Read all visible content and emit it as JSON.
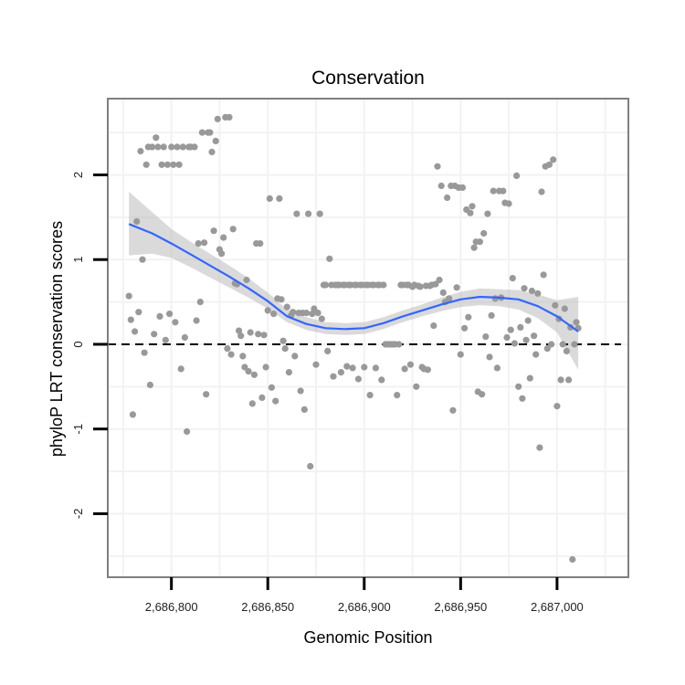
{
  "chart_data": {
    "type": "scatter",
    "title": "Conservation",
    "xlabel": "Genomic Position",
    "ylabel": "phyloP LRT conservation scores",
    "xlim": [
      2686767,
      2687037
    ],
    "ylim": [
      -2.75,
      2.9
    ],
    "x_ticks": [
      2686800,
      2686850,
      2686900,
      2686950,
      2687000
    ],
    "x_tick_labels": [
      "2,686,800",
      "2,686,850",
      "2,686,900",
      "2,686,950",
      "2,687,000"
    ],
    "y_ticks": [
      -2,
      -1,
      0,
      1,
      2
    ],
    "y_tick_labels": [
      "-2",
      "-1",
      "0",
      "1",
      "2"
    ],
    "reference_line": {
      "y": 0,
      "style": "dashed"
    },
    "points": [
      [
        2686778,
        0.57
      ],
      [
        2686779,
        0.29
      ],
      [
        2686780,
        -0.83
      ],
      [
        2686781,
        0.15
      ],
      [
        2686782,
        1.45
      ],
      [
        2686783,
        0.38
      ],
      [
        2686784,
        2.28
      ],
      [
        2686785,
        1.0
      ],
      [
        2686786,
        -0.1
      ],
      [
        2686787,
        2.12
      ],
      [
        2686788,
        2.33
      ],
      [
        2686789,
        -0.48
      ],
      [
        2686790,
        2.33
      ],
      [
        2686791,
        0.12
      ],
      [
        2686792,
        2.44
      ],
      [
        2686793,
        2.33
      ],
      [
        2686794,
        0.33
      ],
      [
        2686795,
        2.12
      ],
      [
        2686796,
        2.33
      ],
      [
        2686797,
        0.05
      ],
      [
        2686798,
        2.12
      ],
      [
        2686799,
        0.36
      ],
      [
        2686800,
        2.33
      ],
      [
        2686801,
        2.12
      ],
      [
        2686802,
        0.26
      ],
      [
        2686803,
        2.33
      ],
      [
        2686804,
        2.12
      ],
      [
        2686805,
        -0.29
      ],
      [
        2686806,
        2.33
      ],
      [
        2686807,
        0.08
      ],
      [
        2686808,
        -1.03
      ],
      [
        2686809,
        2.33
      ],
      [
        2686810,
        2.33
      ],
      [
        2686812,
        2.33
      ],
      [
        2686813,
        0.28
      ],
      [
        2686814,
        1.19
      ],
      [
        2686815,
        0.5
      ],
      [
        2686816,
        2.5
      ],
      [
        2686817,
        1.2
      ],
      [
        2686818,
        -0.59
      ],
      [
        2686819,
        2.5
      ],
      [
        2686820,
        2.5
      ],
      [
        2686821,
        2.27
      ],
      [
        2686822,
        1.34
      ],
      [
        2686823,
        2.4
      ],
      [
        2686824,
        2.66
      ],
      [
        2686825,
        1.12
      ],
      [
        2686826,
        1.07
      ],
      [
        2686827,
        1.26
      ],
      [
        2686828,
        2.68
      ],
      [
        2686829,
        -0.05
      ],
      [
        2686830,
        2.68
      ],
      [
        2686831,
        -0.12
      ],
      [
        2686832,
        1.36
      ],
      [
        2686833,
        0.72
      ],
      [
        2686834,
        0.71
      ],
      [
        2686835,
        0.16
      ],
      [
        2686836,
        0.1
      ],
      [
        2686837,
        -0.14
      ],
      [
        2686838,
        -0.27
      ],
      [
        2686839,
        0.76
      ],
      [
        2686840,
        -0.32
      ],
      [
        2686841,
        0.14
      ],
      [
        2686842,
        -0.7
      ],
      [
        2686843,
        -0.36
      ],
      [
        2686844,
        1.19
      ],
      [
        2686845,
        0.12
      ],
      [
        2686846,
        1.19
      ],
      [
        2686847,
        -0.63
      ],
      [
        2686848,
        0.11
      ],
      [
        2686849,
        -0.27
      ],
      [
        2686850,
        0.4
      ],
      [
        2686851,
        1.72
      ],
      [
        2686852,
        -0.51
      ],
      [
        2686853,
        0.36
      ],
      [
        2686854,
        -0.67
      ],
      [
        2686855,
        0.54
      ],
      [
        2686856,
        1.72
      ],
      [
        2686857,
        0.53
      ],
      [
        2686858,
        0.04
      ],
      [
        2686859,
        -0.05
      ],
      [
        2686860,
        0.44
      ],
      [
        2686861,
        -0.33
      ],
      [
        2686862,
        0.34
      ],
      [
        2686863,
        0.38
      ],
      [
        2686864,
        -0.14
      ],
      [
        2686865,
        1.54
      ],
      [
        2686866,
        0.37
      ],
      [
        2686867,
        -0.55
      ],
      [
        2686868,
        0.37
      ],
      [
        2686869,
        -0.77
      ],
      [
        2686870,
        0.37
      ],
      [
        2686871,
        1.54
      ],
      [
        2686872,
        -1.44
      ],
      [
        2686873,
        0.36
      ],
      [
        2686874,
        0.42
      ],
      [
        2686875,
        -0.24
      ],
      [
        2686876,
        0.37
      ],
      [
        2686877,
        1.54
      ],
      [
        2686878,
        0.3
      ],
      [
        2686879,
        0.7
      ],
      [
        2686880,
        0.7
      ],
      [
        2686881,
        -0.08
      ],
      [
        2686882,
        1.01
      ],
      [
        2686883,
        0.7
      ],
      [
        2686884,
        -0.38
      ],
      [
        2686885,
        0.7
      ],
      [
        2686886,
        0.7
      ],
      [
        2686887,
        0.7
      ],
      [
        2686888,
        -0.33
      ],
      [
        2686889,
        0.7
      ],
      [
        2686890,
        0.7
      ],
      [
        2686891,
        -0.26
      ],
      [
        2686892,
        0.7
      ],
      [
        2686893,
        0.7
      ],
      [
        2686894,
        -0.28
      ],
      [
        2686895,
        0.7
      ],
      [
        2686896,
        0.7
      ],
      [
        2686897,
        -0.41
      ],
      [
        2686898,
        0.7
      ],
      [
        2686899,
        0.7
      ],
      [
        2686900,
        -0.27
      ],
      [
        2686901,
        0.7
      ],
      [
        2686902,
        0.7
      ],
      [
        2686903,
        -0.6
      ],
      [
        2686904,
        0.7
      ],
      [
        2686905,
        0.7
      ],
      [
        2686906,
        -0.28
      ],
      [
        2686907,
        0.7
      ],
      [
        2686908,
        0.7
      ],
      [
        2686909,
        -0.42
      ],
      [
        2686910,
        0.7
      ],
      [
        2686911,
        0.0
      ],
      [
        2686912,
        0.0
      ],
      [
        2686913,
        0.0
      ],
      [
        2686914,
        0.0
      ],
      [
        2686915,
        0.0
      ],
      [
        2686916,
        0.0
      ],
      [
        2686917,
        -0.6
      ],
      [
        2686918,
        0.0
      ],
      [
        2686919,
        0.7
      ],
      [
        2686920,
        0.7
      ],
      [
        2686921,
        -0.29
      ],
      [
        2686922,
        0.7
      ],
      [
        2686923,
        0.7
      ],
      [
        2686924,
        -0.24
      ],
      [
        2686925,
        0.68
      ],
      [
        2686926,
        0.7
      ],
      [
        2686927,
        -0.5
      ],
      [
        2686928,
        0.69
      ],
      [
        2686929,
        0.68
      ],
      [
        2686930,
        -0.27
      ],
      [
        2686931,
        -0.29
      ],
      [
        2686932,
        0.69
      ],
      [
        2686933,
        -0.3
      ],
      [
        2686934,
        0.69
      ],
      [
        2686935,
        0.7
      ],
      [
        2686936,
        0.22
      ],
      [
        2686937,
        0.71
      ],
      [
        2686938,
        2.1
      ],
      [
        2686939,
        0.76
      ],
      [
        2686940,
        1.87
      ],
      [
        2686941,
        0.61
      ],
      [
        2686942,
        0.5
      ],
      [
        2686943,
        1.73
      ],
      [
        2686944,
        0.54
      ],
      [
        2686945,
        1.87
      ],
      [
        2686946,
        -0.78
      ],
      [
        2686947,
        1.87
      ],
      [
        2686948,
        0.67
      ],
      [
        2686949,
        1.85
      ],
      [
        2686950,
        -0.12
      ],
      [
        2686951,
        1.85
      ],
      [
        2686952,
        0.19
      ],
      [
        2686953,
        1.59
      ],
      [
        2686954,
        0.32
      ],
      [
        2686955,
        1.55
      ],
      [
        2686956,
        1.63
      ],
      [
        2686957,
        1.14
      ],
      [
        2686958,
        1.21
      ],
      [
        2686959,
        -0.56
      ],
      [
        2686960,
        1.21
      ],
      [
        2686961,
        -0.59
      ],
      [
        2686962,
        1.31
      ],
      [
        2686963,
        0.09
      ],
      [
        2686964,
        1.54
      ],
      [
        2686965,
        -0.15
      ],
      [
        2686966,
        0.34
      ],
      [
        2686967,
        1.81
      ],
      [
        2686968,
        0.54
      ],
      [
        2686969,
        -0.28
      ],
      [
        2686970,
        1.81
      ],
      [
        2686971,
        0.55
      ],
      [
        2686972,
        1.81
      ],
      [
        2686973,
        1.67
      ],
      [
        2686974,
        0.08
      ],
      [
        2686975,
        1.66
      ],
      [
        2686976,
        0.17
      ],
      [
        2686977,
        0.78
      ],
      [
        2686978,
        0.01
      ],
      [
        2686979,
        1.99
      ],
      [
        2686980,
        -0.5
      ],
      [
        2686981,
        0.2
      ],
      [
        2686982,
        -0.64
      ],
      [
        2686983,
        0.66
      ],
      [
        2686984,
        0.05
      ],
      [
        2686985,
        0.28
      ],
      [
        2686986,
        -0.4
      ],
      [
        2686987,
        0.63
      ],
      [
        2686988,
        0.1
      ],
      [
        2686989,
        -0.12
      ],
      [
        2686990,
        0.6
      ],
      [
        2686991,
        -1.22
      ],
      [
        2686992,
        1.8
      ],
      [
        2686993,
        0.82
      ],
      [
        2686994,
        2.1
      ],
      [
        2686995,
        -0.05
      ],
      [
        2686996,
        2.12
      ],
      [
        2686997,
        0.0
      ],
      [
        2686998,
        2.18
      ],
      [
        2686999,
        0.46
      ],
      [
        2687000,
        -0.73
      ],
      [
        2687001,
        0.3
      ],
      [
        2687002,
        -0.42
      ],
      [
        2687003,
        0.0
      ],
      [
        2687004,
        0.42
      ],
      [
        2687005,
        -0.08
      ],
      [
        2687006,
        -0.42
      ],
      [
        2687007,
        0.2
      ],
      [
        2687008,
        -2.54
      ],
      [
        2687009,
        0.0
      ],
      [
        2687010,
        0.26
      ],
      [
        2687011,
        0.19
      ]
    ],
    "smooth": {
      "method": "loess",
      "x": [
        2686778,
        2686790,
        2686800,
        2686810,
        2686820,
        2686830,
        2686840,
        2686850,
        2686860,
        2686870,
        2686880,
        2686890,
        2686900,
        2686910,
        2686920,
        2686930,
        2686940,
        2686950,
        2686960,
        2686970,
        2686980,
        2686990,
        2687000,
        2687011
      ],
      "y": [
        1.42,
        1.31,
        1.19,
        1.06,
        0.93,
        0.8,
        0.66,
        0.51,
        0.33,
        0.24,
        0.19,
        0.18,
        0.19,
        0.25,
        0.33,
        0.4,
        0.47,
        0.53,
        0.56,
        0.55,
        0.53,
        0.45,
        0.33,
        0.15
      ],
      "lower": [
        1.05,
        1.07,
        1.02,
        0.91,
        0.79,
        0.67,
        0.55,
        0.42,
        0.26,
        0.17,
        0.12,
        0.11,
        0.12,
        0.18,
        0.26,
        0.33,
        0.39,
        0.44,
        0.46,
        0.45,
        0.41,
        0.31,
        0.14,
        -0.3
      ],
      "upper": [
        1.8,
        1.56,
        1.36,
        1.21,
        1.07,
        0.93,
        0.78,
        0.61,
        0.41,
        0.32,
        0.26,
        0.25,
        0.26,
        0.32,
        0.4,
        0.47,
        0.55,
        0.62,
        0.66,
        0.65,
        0.64,
        0.59,
        0.52,
        0.56
      ]
    },
    "colors": {
      "points": "#999999",
      "smooth_line": "#3366FF",
      "ribbon": "#BBBBBB",
      "grid": "#F2F2F2",
      "panel_border": "#7F7F7F"
    },
    "grid": true,
    "legend": "none"
  }
}
